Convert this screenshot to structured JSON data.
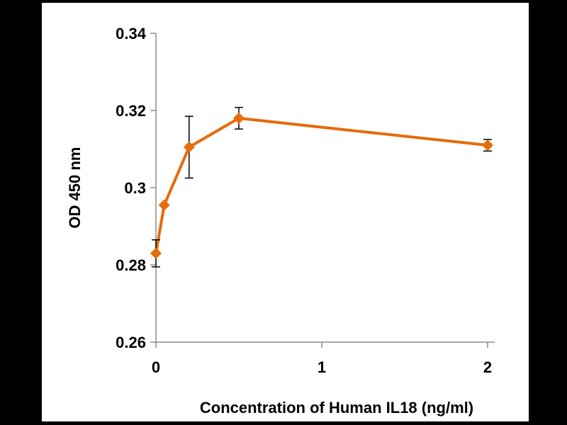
{
  "chart_data": {
    "type": "line",
    "title": "",
    "xlabel": "Concentration of Human IL18 (ng/ml)",
    "ylabel": "OD 450 nm",
    "xlim": [
      0,
      2
    ],
    "ylim": [
      0.26,
      0.34
    ],
    "xticks": [
      0,
      1,
      2
    ],
    "xtick_labels": [
      "0",
      "1",
      "2"
    ],
    "yticks": [
      0.26,
      0.28,
      0.3,
      0.32,
      0.34
    ],
    "ytick_labels": [
      "0.26",
      "0.28",
      "0.3",
      "0.32",
      "0.34"
    ],
    "grid": false,
    "legend": null,
    "series": [
      {
        "name": "OD 450 nm",
        "color": "#E46C0A",
        "marker": "diamond",
        "x": [
          0,
          0.05,
          0.2,
          0.5,
          2
        ],
        "y": [
          0.283,
          0.2955,
          0.3105,
          0.318,
          0.311
        ],
        "error": [
          0.0035,
          0.0,
          0.008,
          0.0028,
          0.0015
        ]
      }
    ]
  }
}
